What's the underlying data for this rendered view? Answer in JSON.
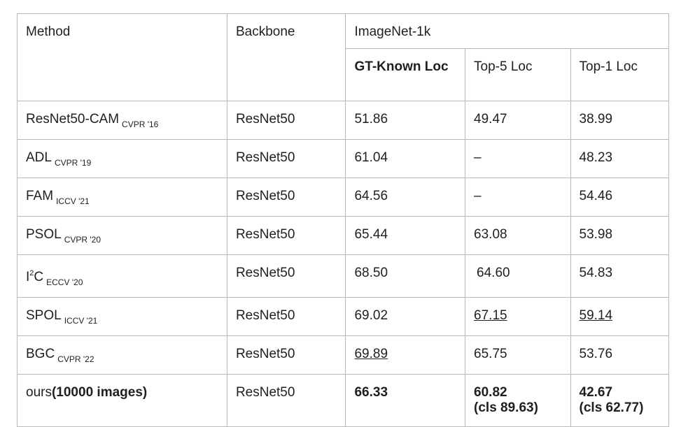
{
  "table": {
    "headers": {
      "method": "Method",
      "backbone": "Backbone",
      "dataset": "ImageNet-1k",
      "gt_known_loc": "GT-Known Loc",
      "top5_loc": "Top-5 Loc",
      "top1_loc": "Top-1 Loc"
    },
    "rows": [
      {
        "method": "ResNet50-CAM",
        "venue": "CVPR '16",
        "backbone": "ResNet50",
        "gt_known": "51.86",
        "top5": "49.47",
        "top1": "38.99"
      },
      {
        "method": "ADL",
        "venue": "CVPR '19",
        "backbone": "ResNet50",
        "gt_known": "61.04",
        "top5": "–",
        "top1": "48.23"
      },
      {
        "method": "FAM",
        "venue": "ICCV '21",
        "backbone": "ResNet50",
        "gt_known": "64.56",
        "top5": "–",
        "top1": "54.46"
      },
      {
        "method": "PSOL",
        "venue": "CVPR '20",
        "backbone": "ResNet50",
        "gt_known": "65.44",
        "top5": "63.08",
        "top1": "53.98"
      },
      {
        "method_base": "I",
        "method_sup": "2",
        "method_tail": "C",
        "venue": "ECCV '20",
        "backbone": "ResNet50",
        "gt_known": "68.50",
        "top5": "64.60",
        "top1": "54.83"
      },
      {
        "method": "SPOL",
        "venue": "ICCV '21",
        "backbone": "ResNet50",
        "gt_known": "69.02",
        "top5": "67.15",
        "top1": "59.14"
      },
      {
        "method": "BGC",
        "venue": "CVPR '22",
        "backbone": "ResNet50",
        "gt_known": "69.89",
        "top5": "65.75",
        "top1": "53.76"
      }
    ],
    "ours": {
      "method": "ours",
      "method_note": "(10000 images)",
      "backbone": "ResNet50",
      "gt_known": "66.33",
      "top5": "60.82",
      "top5_cls": "(cls 89.63)",
      "top1": "42.67",
      "top1_cls": "(cls 62.77)"
    }
  }
}
